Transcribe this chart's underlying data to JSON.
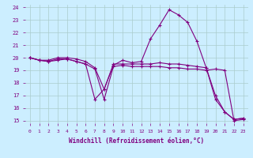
{
  "xlabel": "Windchill (Refroidissement éolien,°C)",
  "background_color": "#cceeff",
  "line_color": "#800080",
  "grid_color": "#aacccc",
  "xlim": [
    -0.5,
    23.5
  ],
  "ylim": [
    14.8,
    24.2
  ],
  "yticks": [
    15,
    16,
    17,
    18,
    19,
    20,
    21,
    22,
    23,
    24
  ],
  "xticks": [
    0,
    1,
    2,
    3,
    4,
    5,
    6,
    7,
    8,
    9,
    10,
    11,
    12,
    13,
    14,
    15,
    16,
    17,
    18,
    19,
    20,
    21,
    22,
    23
  ],
  "series": [
    {
      "x": [
        0,
        1,
        2,
        3,
        4,
        5,
        6,
        7,
        8,
        9,
        10,
        11,
        12,
        13,
        14,
        15,
        16,
        17,
        18,
        19,
        20,
        21,
        22,
        23
      ],
      "y": [
        20.0,
        19.8,
        19.8,
        20.0,
        20.0,
        19.9,
        19.7,
        19.2,
        17.5,
        19.5,
        19.5,
        19.5,
        19.5,
        19.5,
        19.6,
        19.5,
        19.5,
        19.4,
        19.3,
        19.2,
        17.0,
        15.7,
        15.1,
        15.2
      ]
    },
    {
      "x": [
        0,
        1,
        2,
        3,
        4,
        5,
        6,
        7,
        8,
        9,
        10,
        11,
        12,
        13,
        14,
        15,
        16,
        17,
        18,
        19,
        20,
        21,
        22,
        23
      ],
      "y": [
        20.0,
        19.8,
        19.7,
        19.9,
        19.9,
        19.7,
        19.5,
        19.1,
        16.7,
        19.3,
        19.4,
        19.3,
        19.3,
        19.3,
        19.3,
        19.2,
        19.2,
        19.1,
        19.1,
        19.0,
        19.1,
        19.0,
        15.0,
        15.1
      ]
    },
    {
      "x": [
        0,
        1,
        2,
        3,
        4,
        5,
        6,
        7,
        8,
        9,
        10,
        11,
        12,
        13,
        14,
        15,
        16,
        17,
        18,
        19,
        20,
        21,
        22,
        23
      ],
      "y": [
        20.0,
        19.8,
        19.7,
        19.8,
        19.9,
        19.7,
        19.5,
        16.7,
        17.5,
        19.4,
        19.8,
        19.6,
        19.7,
        21.5,
        22.6,
        23.8,
        23.4,
        22.8,
        21.3,
        19.2,
        16.7,
        15.7,
        15.1,
        15.2
      ]
    }
  ]
}
